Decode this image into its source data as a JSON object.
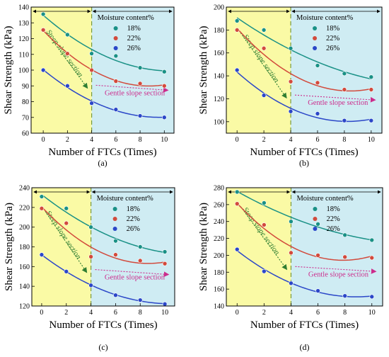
{
  "chart_data": [
    {
      "panel": "(a)",
      "type": "scatter",
      "xlabel": "Number of FTCs (Times)",
      "ylabel": "Shear Strength (kPa)",
      "xlim": [
        -1,
        10.8
      ],
      "ylim": [
        60,
        140
      ],
      "x_ticks": [
        0,
        2,
        4,
        6,
        8,
        10
      ],
      "y_ticks": [
        60,
        70,
        80,
        90,
        100,
        110,
        120,
        130,
        140
      ],
      "x": [
        0,
        2,
        4,
        6,
        8,
        10
      ],
      "legend_title": "Moisture content%",
      "series": [
        {
          "name": "18%",
          "color": "#1a9186",
          "values": [
            135.5,
            122.5,
            110.5,
            109,
            101.5,
            99
          ]
        },
        {
          "name": "22%",
          "color": "#d24a3c",
          "values": [
            125.5,
            110.5,
            100,
            93,
            91.5,
            90
          ]
        },
        {
          "name": "26%",
          "color": "#2b47c8",
          "values": [
            100,
            90,
            79,
            75,
            71,
            70
          ]
        }
      ],
      "annotations": [
        "Steep slope section",
        "Gentle slope section"
      ]
    },
    {
      "panel": "(b)",
      "type": "scatter",
      "xlabel": "Number of FTCs (Times)",
      "ylabel": "Shear Strength (kPa)",
      "xlim": [
        -0.8,
        10.8
      ],
      "ylim": [
        90,
        200
      ],
      "x_ticks": [
        0,
        2,
        4,
        6,
        8,
        10
      ],
      "y_ticks": [
        100,
        120,
        140,
        160,
        180,
        200
      ],
      "x": [
        0,
        2,
        4,
        6,
        8,
        10
      ],
      "legend_title": "Moisture content%",
      "series": [
        {
          "name": "18%",
          "color": "#1a9186",
          "values": [
            188,
            180,
            164,
            149,
            142,
            139
          ]
        },
        {
          "name": "22%",
          "color": "#d24a3c",
          "values": [
            180,
            164,
            135,
            134,
            128,
            128
          ]
        },
        {
          "name": "26%",
          "color": "#2b47c8",
          "values": [
            145,
            123,
            109,
            107,
            101,
            101
          ]
        }
      ],
      "annotations": [
        "Steep slope section",
        "Gentle slope section"
      ]
    },
    {
      "panel": "(c)",
      "type": "scatter",
      "xlabel": "Number of FTCs (Times)",
      "ylabel": "Shear Strength (kPa)",
      "xlim": [
        -0.8,
        10.8
      ],
      "ylim": [
        120,
        240
      ],
      "x_ticks": [
        0,
        2,
        4,
        6,
        8,
        10
      ],
      "y_ticks": [
        120,
        140,
        160,
        180,
        200,
        220,
        240
      ],
      "x": [
        0,
        2,
        4,
        6,
        8,
        10
      ],
      "legend_title": "Moisture content%",
      "series": [
        {
          "name": "18%",
          "color": "#1a9186",
          "values": [
            231,
            219,
            200,
            186,
            180,
            175
          ]
        },
        {
          "name": "22%",
          "color": "#d24a3c",
          "values": [
            219,
            204,
            170,
            172,
            166,
            163
          ]
        },
        {
          "name": "26%",
          "color": "#2b47c8",
          "values": [
            172,
            155,
            141,
            131,
            126,
            122
          ]
        }
      ],
      "annotations": [
        "Steep slope section",
        "Gentle slope section"
      ]
    },
    {
      "panel": "(d)",
      "type": "scatter",
      "xlabel": "Number of FTCs (Times)",
      "ylabel": "Shear Strength (kPa)",
      "xlim": [
        -0.8,
        10.8
      ],
      "ylim": [
        140,
        280
      ],
      "x_ticks": [
        0,
        2,
        4,
        6,
        8,
        10
      ],
      "y_ticks": [
        140,
        160,
        180,
        200,
        220,
        240,
        260,
        280
      ],
      "x": [
        0,
        2,
        4,
        6,
        8,
        10
      ],
      "legend_title": "Moisture content%",
      "series": [
        {
          "name": "18%",
          "color": "#1a9186",
          "values": [
            275,
            262,
            240,
            237,
            224,
            218
          ]
        },
        {
          "name": "22%",
          "color": "#d24a3c",
          "values": [
            261,
            236,
            203,
            200,
            198,
            197
          ]
        },
        {
          "name": "26%",
          "color": "#2b47c8",
          "values": [
            207,
            181,
            167,
            158,
            152,
            151
          ]
        }
      ],
      "annotations": [
        "Steep slope section",
        "Gentle slope section"
      ]
    }
  ]
}
